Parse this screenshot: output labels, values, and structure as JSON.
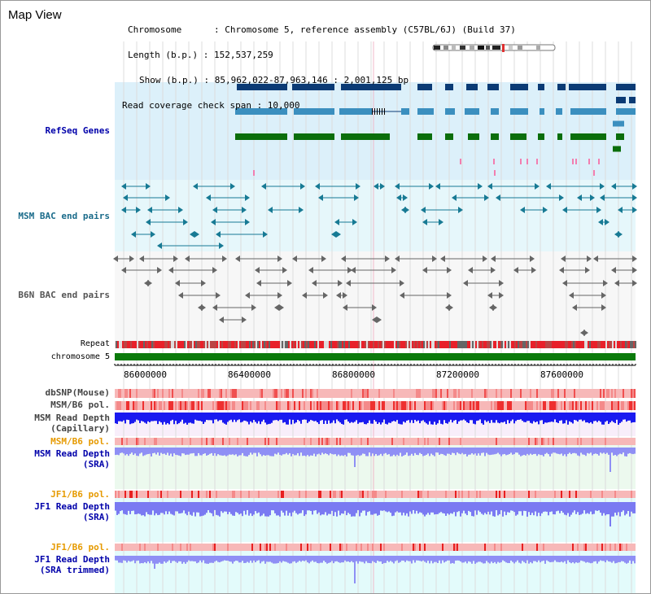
{
  "title": "Map View",
  "info": [
    "Chromosome      : Chromosome 5, reference assembly (C57BL/6J) (Build 37)",
    "Length (b.p.) : 152,537,259",
    "Show (b.p.) : 85,962,022-87,963,146 : 2,001,125 bp",
    "Read coverage check span : 10,000"
  ],
  "tracks": {
    "refseq": "RefSeq Genes",
    "msm_bac": "MSM BAC end pairs",
    "b6n_bac": "B6N BAC end pairs",
    "repeat": "Repeat",
    "chromosome": "chromosome 5",
    "dbsnp": "dbSNP(Mouse)",
    "msm_b6_pol": "MSM/B6 pol.",
    "msm_depth_cap_1": "MSM Read Depth",
    "msm_depth_cap_2": "(Capillary)",
    "msm_b6_pol_2": "MSM/B6 pol.",
    "msm_depth_sra_1": "MSM Read Depth",
    "msm_depth_sra_2": "(SRA)",
    "jf1_pol_1": "JF1/B6 pol.",
    "jf1_depth_sra_1": "JF1 Read Depth",
    "jf1_depth_sra_2": "(SRA)",
    "jf1_pol_2": "JF1/B6 pol.",
    "jf1_depth_trim_1": "JF1 Read Depth",
    "jf1_depth_trim_2": "(SRA trimmed)"
  },
  "axis_ticks": [
    "86000000",
    "86400000",
    "86800000",
    "87200000",
    "87600000"
  ],
  "colors": {
    "refseq_dark": "#0b3b75",
    "refseq_mid": "#3b8fbf",
    "refseq_green": "#0b6e0b",
    "refseq_pink": "#f27fb0",
    "msm_bac": "#177a94",
    "b6n_bac": "#666666",
    "repeat_red": "#e8202a",
    "chromosome_green": "#0b7a0b",
    "depth_blue": "#1a1af0",
    "depth_light": "#8f8ff5"
  }
}
